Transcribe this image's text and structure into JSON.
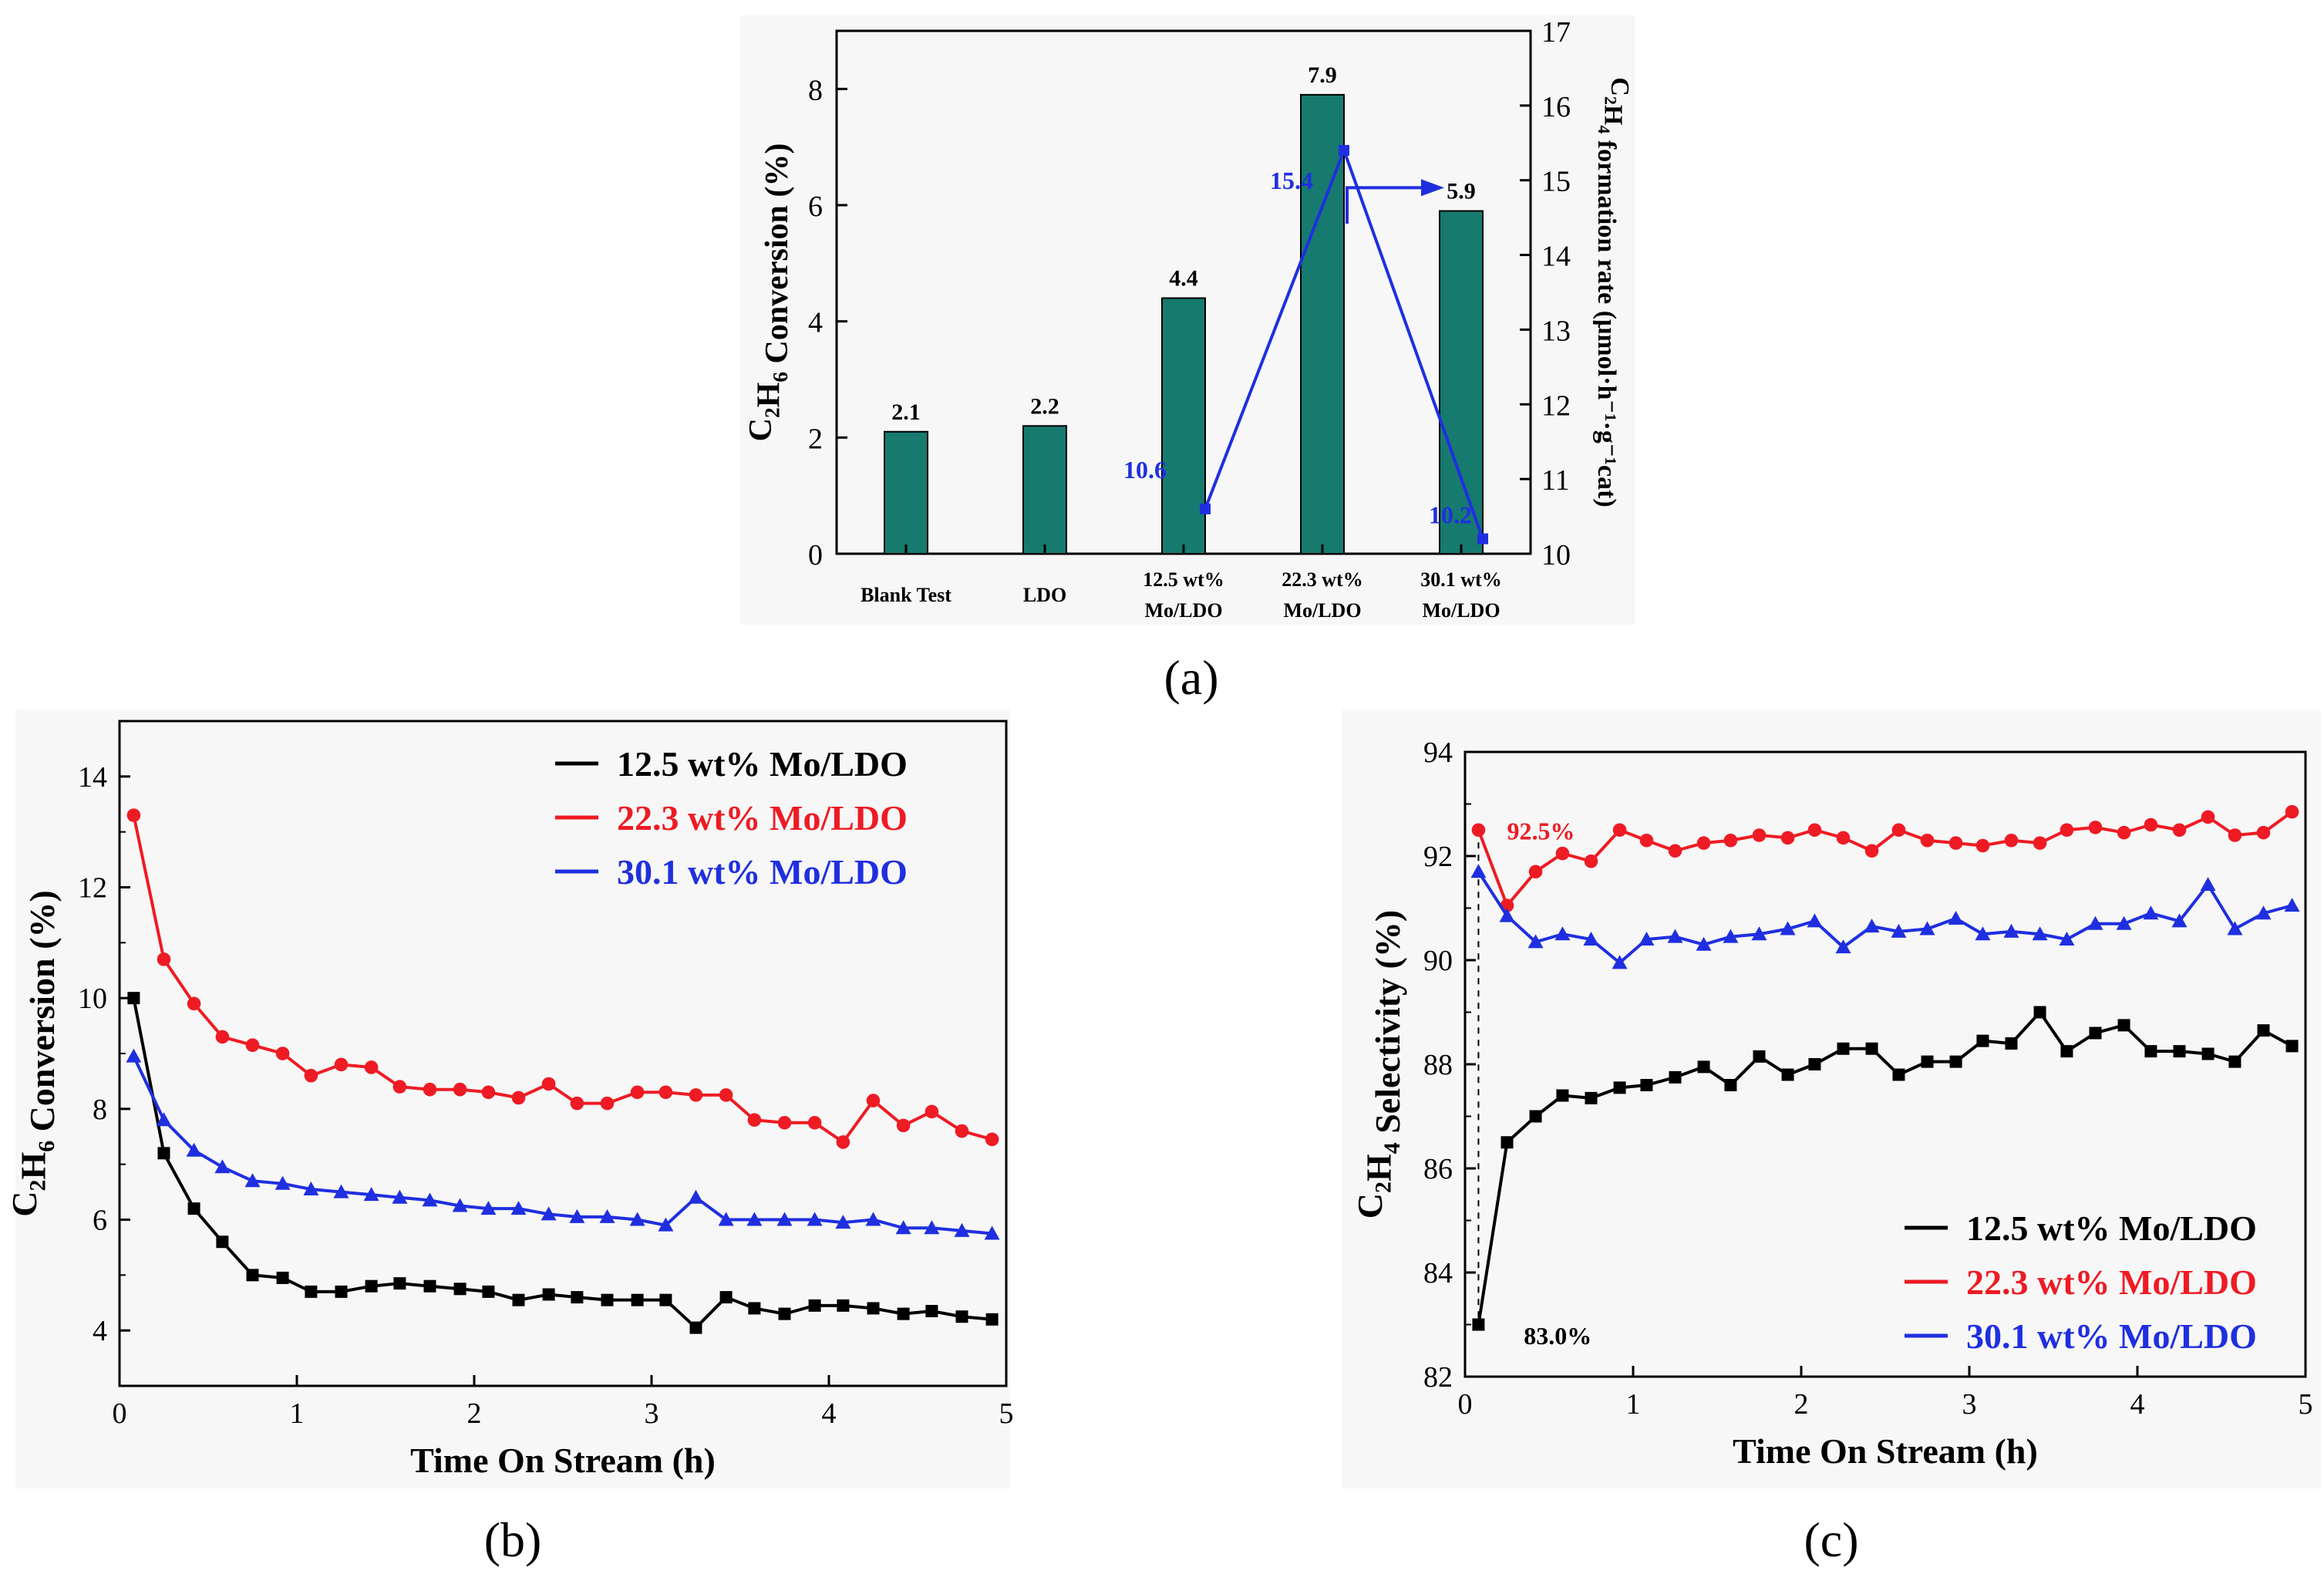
{
  "figure": {
    "panel_labels": {
      "a": "(a)",
      "b": "(b)",
      "c": "(c)"
    }
  },
  "chart_data": [
    {
      "id": "a",
      "type": "bar",
      "categories": [
        [
          "Blank Test"
        ],
        [
          "LDO"
        ],
        [
          "12.5 wt%",
          "Mo/LDO"
        ],
        [
          "22.3 wt%",
          "Mo/LDO"
        ],
        [
          "30.1 wt%",
          "Mo/LDO"
        ]
      ],
      "values": [
        2.1,
        2.2,
        4.4,
        7.9,
        5.9
      ],
      "value_labels": [
        "2.1",
        "2.2",
        "4.4",
        "7.9",
        "5.9"
      ],
      "ylabel": "C2H6 Conversion (%)",
      "ylim": [
        0,
        9
      ],
      "yticks": [
        0,
        2,
        4,
        6,
        8
      ],
      "bar_color": "#167a6e",
      "secondary": {
        "type": "line",
        "indices": [
          2,
          3,
          4
        ],
        "values": [
          10.6,
          15.4,
          10.2
        ],
        "value_labels": [
          "10.6",
          "15.4",
          "10.2"
        ],
        "ylabel": "C2H4 formation rate (μmol·h-1·g-1cat)",
        "ylim": [
          10,
          17
        ],
        "yticks": [
          10,
          11,
          12,
          13,
          14,
          15,
          16,
          17
        ],
        "color": "#1f2fe0"
      }
    },
    {
      "id": "b",
      "type": "line",
      "xlabel": "Time On Stream (h)",
      "ylabel": "C2H6 Conversion (%)",
      "xlim": [
        0,
        5
      ],
      "ylim": [
        3,
        15
      ],
      "xticks": [
        0,
        1,
        2,
        3,
        4,
        5
      ],
      "yticks": [
        4,
        6,
        8,
        10,
        12,
        14
      ],
      "x": [
        0.08,
        0.25,
        0.42,
        0.58,
        0.75,
        0.92,
        1.08,
        1.25,
        1.42,
        1.58,
        1.75,
        1.92,
        2.08,
        2.25,
        2.42,
        2.58,
        2.75,
        2.92,
        3.08,
        3.25,
        3.42,
        3.58,
        3.75,
        3.92,
        4.08,
        4.25,
        4.42,
        4.58,
        4.75,
        4.92
      ],
      "series": [
        {
          "name": "12.5 wt% Mo/LDO",
          "color": "#000000",
          "marker": "square",
          "values": [
            10.0,
            7.2,
            6.2,
            5.6,
            5.0,
            4.95,
            4.7,
            4.7,
            4.8,
            4.85,
            4.8,
            4.75,
            4.7,
            4.55,
            4.65,
            4.6,
            4.55,
            4.55,
            4.55,
            4.05,
            4.6,
            4.4,
            4.3,
            4.45,
            4.45,
            4.4,
            4.3,
            4.35,
            4.25,
            4.2
          ]
        },
        {
          "name": "22.3 wt% Mo/LDO",
          "color": "#ee1b24",
          "marker": "circle",
          "values": [
            13.3,
            10.7,
            9.9,
            9.3,
            9.15,
            9.0,
            8.6,
            8.8,
            8.75,
            8.4,
            8.35,
            8.35,
            8.3,
            8.2,
            8.45,
            8.1,
            8.1,
            8.3,
            8.3,
            8.25,
            8.25,
            7.8,
            7.75,
            7.75,
            7.4,
            8.15,
            7.7,
            7.95,
            7.6,
            7.45
          ]
        },
        {
          "name": "30.1 wt% Mo/LDO",
          "color": "#1f2fe0",
          "marker": "triangle",
          "values": [
            8.95,
            7.8,
            7.25,
            6.95,
            6.7,
            6.65,
            6.55,
            6.5,
            6.45,
            6.4,
            6.35,
            6.25,
            6.2,
            6.2,
            6.1,
            6.05,
            6.05,
            6.0,
            5.9,
            6.4,
            6.0,
            6.0,
            6.0,
            6.0,
            5.95,
            6.0,
            5.85,
            5.85,
            5.8,
            5.75
          ]
        }
      ]
    },
    {
      "id": "c",
      "type": "line",
      "xlabel": "Time On Stream (h)",
      "ylabel": "C2H4 Selectivity (%)",
      "xlim": [
        0,
        5
      ],
      "ylim": [
        82,
        94
      ],
      "xticks": [
        0,
        1,
        2,
        3,
        4,
        5
      ],
      "yticks": [
        82,
        84,
        86,
        88,
        90,
        92,
        94
      ],
      "x": [
        0.08,
        0.25,
        0.42,
        0.58,
        0.75,
        0.92,
        1.08,
        1.25,
        1.42,
        1.58,
        1.75,
        1.92,
        2.08,
        2.25,
        2.42,
        2.58,
        2.75,
        2.92,
        3.08,
        3.25,
        3.42,
        3.58,
        3.75,
        3.92,
        4.08,
        4.25,
        4.42,
        4.58,
        4.75,
        4.92
      ],
      "annotations": [
        {
          "text": "92.5%",
          "x": 0.25,
          "y": 92.5,
          "color": "#ee1b24"
        },
        {
          "text": "83.0%",
          "x": 0.35,
          "y": 82.8,
          "color": "#000000"
        }
      ],
      "series": [
        {
          "name": "12.5 wt% Mo/LDO",
          "color": "#000000",
          "marker": "square",
          "values": [
            83.0,
            86.5,
            87.0,
            87.4,
            87.35,
            87.55,
            87.6,
            87.75,
            87.95,
            87.6,
            88.15,
            87.8,
            88.0,
            88.3,
            88.3,
            87.8,
            88.05,
            88.05,
            88.45,
            88.4,
            89.0,
            88.25,
            88.6,
            88.75,
            88.25,
            88.25,
            88.2,
            88.05,
            88.65,
            88.35
          ]
        },
        {
          "name": "22.3 wt% Mo/LDO",
          "color": "#ee1b24",
          "marker": "circle",
          "values": [
            92.5,
            91.05,
            91.7,
            92.05,
            91.9,
            92.5,
            92.3,
            92.1,
            92.25,
            92.3,
            92.4,
            92.35,
            92.5,
            92.35,
            92.1,
            92.5,
            92.3,
            92.25,
            92.2,
            92.3,
            92.25,
            92.5,
            92.55,
            92.45,
            92.6,
            92.5,
            92.75,
            92.4,
            92.45,
            92.85
          ]
        },
        {
          "name": "30.1 wt% Mo/LDO",
          "color": "#1f2fe0",
          "marker": "triangle",
          "values": [
            91.7,
            90.85,
            90.35,
            90.5,
            90.4,
            89.95,
            90.4,
            90.45,
            90.3,
            90.45,
            90.5,
            90.6,
            90.75,
            90.25,
            90.65,
            90.55,
            90.6,
            90.8,
            90.5,
            90.55,
            90.5,
            90.4,
            90.7,
            90.7,
            90.9,
            90.75,
            91.45,
            90.6,
            90.9,
            91.05
          ]
        }
      ]
    }
  ]
}
